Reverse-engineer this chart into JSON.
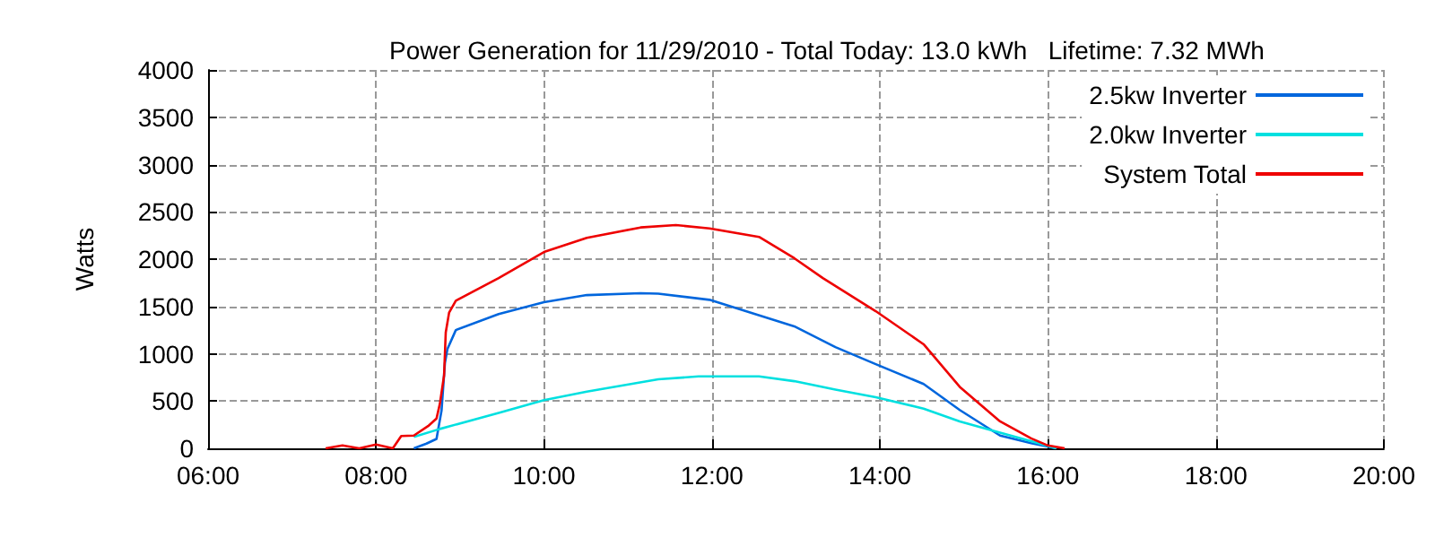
{
  "chart_data": {
    "type": "line",
    "title": "Power Generation for 11/29/2010 - Total Today: 13.0 kWh   Lifetime: 7.32 MWh",
    "ylabel": "Watts",
    "xlim": [
      6,
      20
    ],
    "xticks": [
      {
        "value": 6,
        "label": "06:00"
      },
      {
        "value": 8,
        "label": "08:00"
      },
      {
        "value": 10,
        "label": "10:00"
      },
      {
        "value": 12,
        "label": "12:00"
      },
      {
        "value": 14,
        "label": "14:00"
      },
      {
        "value": 16,
        "label": "16:00"
      },
      {
        "value": 18,
        "label": "18:00"
      },
      {
        "value": 20,
        "label": "20:00"
      }
    ],
    "ylim": [
      0,
      4000
    ],
    "yticks": [
      0,
      500,
      1000,
      1500,
      2000,
      2500,
      3000,
      3500,
      4000
    ],
    "grid": true,
    "legend": "top right",
    "marker": "none",
    "line_style": "solid",
    "series": [
      {
        "name": "2.5kw Inverter",
        "color": "#0066dd",
        "x": [
          8.45,
          8.6,
          8.72,
          8.78,
          8.82,
          8.85,
          8.95,
          9.46,
          10,
          10.51,
          11.15,
          11.36,
          11.97,
          12.98,
          13.47,
          13.95,
          14.52,
          14.95,
          15.43,
          15.8,
          16.1
        ],
        "values": [
          0,
          50,
          100,
          400,
          900,
          1050,
          1250,
          1420,
          1545,
          1620,
          1640,
          1635,
          1570,
          1290,
          1070,
          890,
          680,
          405,
          135,
          55,
          0
        ]
      },
      {
        "name": "2.0kw Inverter",
        "color": "#00e0e0",
        "x": [
          8.45,
          8.76,
          9.46,
          10,
          10.51,
          11.36,
          11.84,
          12.56,
          12.98,
          13.47,
          13.95,
          14.52,
          14.95,
          15.43,
          15.8,
          16.1
        ],
        "values": [
          120,
          205,
          375,
          510,
          600,
          730,
          760,
          760,
          710,
          620,
          540,
          420,
          285,
          165,
          75,
          0
        ]
      },
      {
        "name": "System Total",
        "color": "#ee0000",
        "x": [
          7.4,
          7.6,
          7.8,
          8.0,
          8.2,
          8.3,
          8.45,
          8.62,
          8.72,
          8.76,
          8.81,
          8.83,
          8.87,
          8.95,
          9.46,
          10,
          10.51,
          11.15,
          11.57,
          11.97,
          12.56,
          12.98,
          13.32,
          13.95,
          14.52,
          14.95,
          15.43,
          15.8,
          16.0,
          16.2
        ],
        "values": [
          0,
          30,
          0,
          40,
          0,
          130,
          135,
          235,
          315,
          470,
          770,
          1225,
          1435,
          1560,
          1800,
          2075,
          2225,
          2335,
          2360,
          2325,
          2235,
          2010,
          1800,
          1450,
          1100,
          650,
          285,
          105,
          30,
          0
        ]
      }
    ]
  }
}
